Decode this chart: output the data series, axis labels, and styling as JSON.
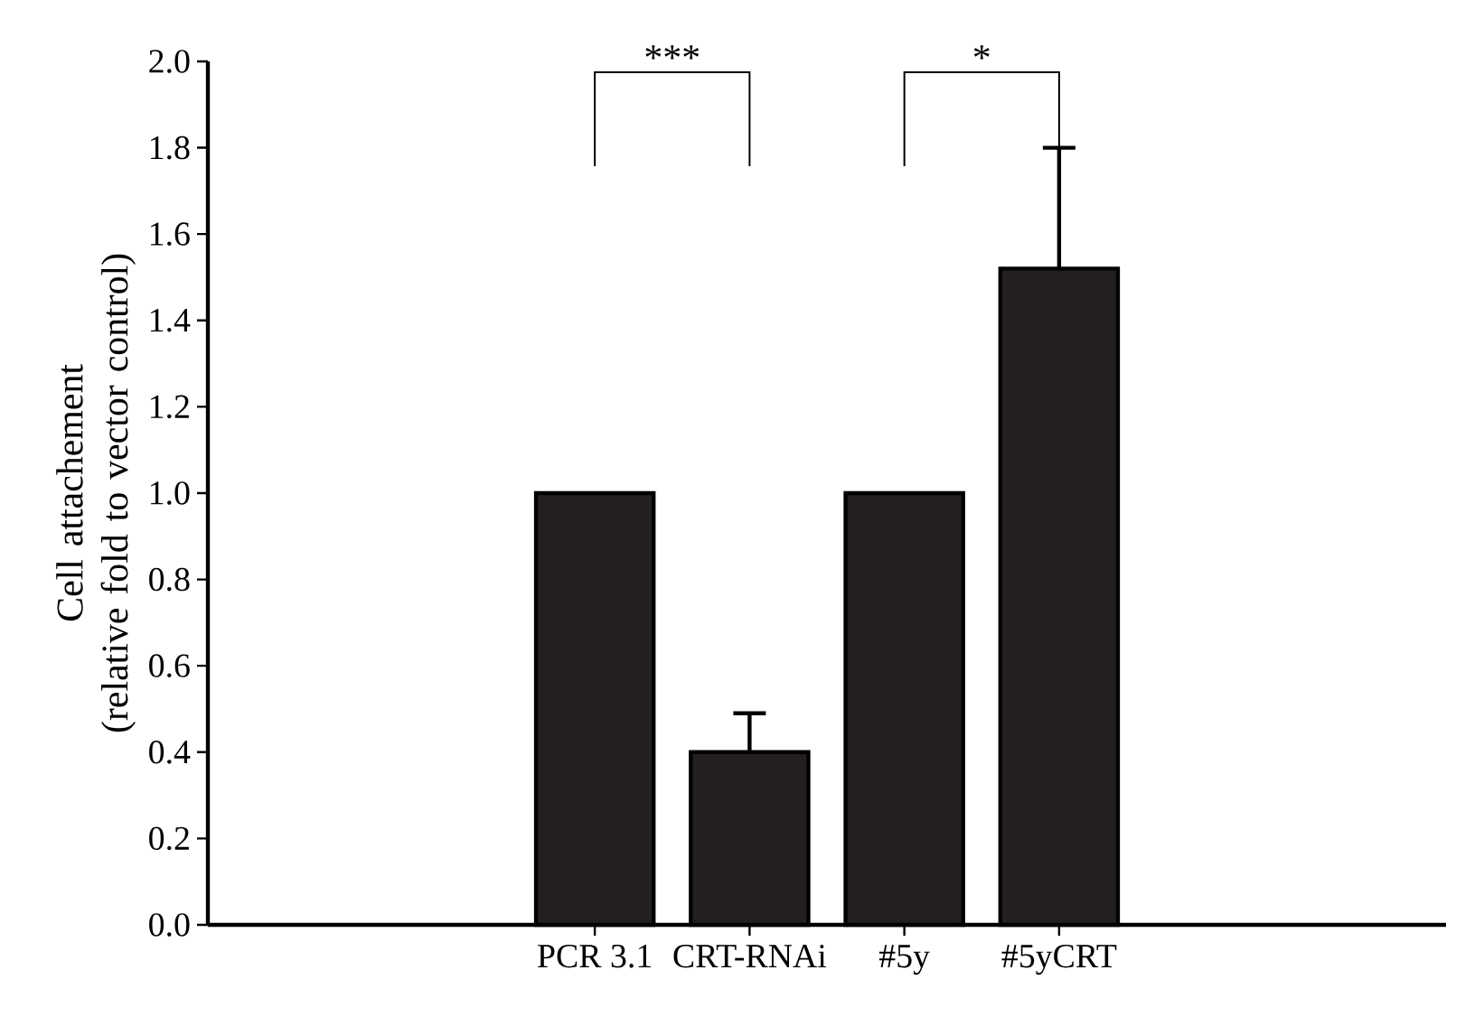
{
  "chart_data": {
    "type": "bar",
    "ylabel": "Cell attachement\n(relative fold to vector control)",
    "categories": [
      null,
      null,
      "PCR 3.1",
      "CRT-RNAi",
      "#5y",
      "#5yCRT",
      null,
      null
    ],
    "values": [
      null,
      null,
      1.0,
      0.4,
      1.0,
      1.52,
      null,
      null
    ],
    "errors": [
      null,
      null,
      null,
      [
        0.4,
        0.49
      ],
      null,
      [
        1.52,
        1.8
      ],
      null,
      null
    ],
    "color": "#231f20",
    "ylim": [
      0,
      2.0
    ],
    "yticks": [
      {
        "value": 0,
        "label": "0.0"
      },
      {
        "value": 0.2,
        "label": "0.2"
      },
      {
        "value": 0.4,
        "label": "0.4"
      },
      {
        "value": 0.6,
        "label": "0.6"
      },
      {
        "value": 0.8,
        "label": "0.8"
      },
      {
        "value": 1.0,
        "label": "1.0"
      },
      {
        "value": 1.2,
        "label": "1.2"
      },
      {
        "value": 1.4,
        "label": "1.4"
      },
      {
        "value": 1.6,
        "label": "1.6"
      },
      {
        "value": 1.8,
        "label": "1.8"
      },
      {
        "value": 2.0,
        "label": "2.0"
      }
    ],
    "annotations": [
      "***",
      "*"
    ],
    "grid": false
  }
}
